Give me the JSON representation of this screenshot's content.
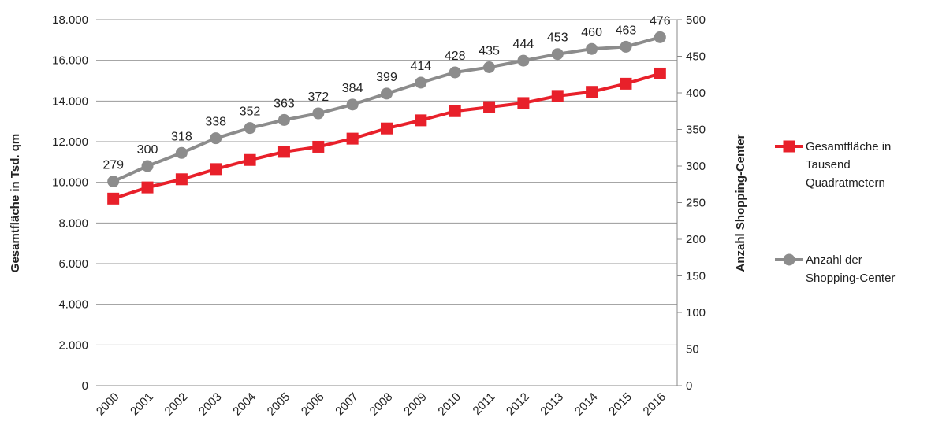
{
  "chart_data": {
    "type": "line",
    "title": "",
    "x": [
      "2000",
      "2001",
      "2002",
      "2003",
      "2004",
      "2005",
      "2006",
      "2007",
      "2008",
      "2009",
      "2010",
      "2011",
      "2012",
      "2013",
      "2014",
      "2015",
      "2016"
    ],
    "ylabel": "Gesamtfläche in Tsd. qm",
    "y2label": "Anzahl Shopping-Center",
    "ylim": [
      0,
      18000
    ],
    "y2lim": [
      0,
      500
    ],
    "yticks": [
      "0",
      "2.000",
      "4.000",
      "6.000",
      "8.000",
      "10.000",
      "12.000",
      "14.000",
      "16.000",
      "18.000"
    ],
    "y2ticks": [
      "0",
      "50",
      "100",
      "150",
      "200",
      "250",
      "300",
      "350",
      "400",
      "450",
      "500"
    ],
    "grid": true,
    "legend_position": "right",
    "series": [
      {
        "name": "Gesamtfläche in Tausend Quadratmetern",
        "name_lines": [
          "Gesamtfläche in",
          "Tausend",
          "Quadratmetern"
        ],
        "axis": "left",
        "color": "#e8202a",
        "marker": "square",
        "values": [
          9200,
          9750,
          10150,
          10650,
          11100,
          11500,
          11750,
          12150,
          12650,
          13050,
          13500,
          13700,
          13900,
          14250,
          14450,
          14850,
          15350
        ]
      },
      {
        "name": "Anzahl der Shopping-Center",
        "name_lines": [
          "Anzahl der",
          "Shopping-Center"
        ],
        "axis": "right",
        "color": "#8c8c8c",
        "marker": "circle",
        "values": [
          279,
          300,
          318,
          338,
          352,
          363,
          372,
          384,
          399,
          414,
          428,
          435,
          444,
          453,
          460,
          463,
          476
        ],
        "data_labels": [
          "279",
          "300",
          "318",
          "338",
          "352",
          "363",
          "372",
          "384",
          "399",
          "414",
          "428",
          "435",
          "444",
          "453",
          "460",
          "463",
          "476"
        ]
      }
    ]
  }
}
